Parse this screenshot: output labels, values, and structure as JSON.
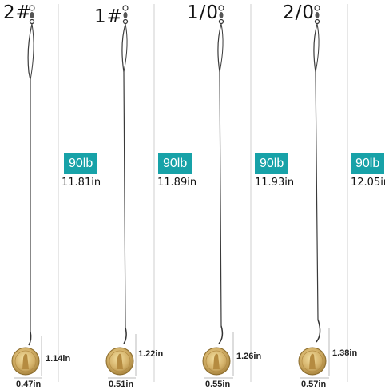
{
  "rigs": [
    {
      "size": "2#",
      "test": "90lb",
      "length": "11.81in",
      "hook_height": "1.14in",
      "hook_width": "0.47in"
    },
    {
      "size": "1#",
      "test": "90lb",
      "length": "11.89in",
      "hook_height": "1.22in",
      "hook_width": "0.51in"
    },
    {
      "size": "1/0",
      "test": "90lb",
      "length": "11.93in",
      "hook_height": "1.26in",
      "hook_width": "0.55in"
    },
    {
      "size": "2/0",
      "test": "90lb",
      "length": "12.05in",
      "hook_height": "1.38in",
      "hook_width": "0.57in"
    }
  ],
  "colors": {
    "badge": "#17a2a8",
    "coin": "#d4b26a",
    "wire": "#3a3a3a"
  },
  "icons": [
    "swivel-icon",
    "coin-icon"
  ]
}
